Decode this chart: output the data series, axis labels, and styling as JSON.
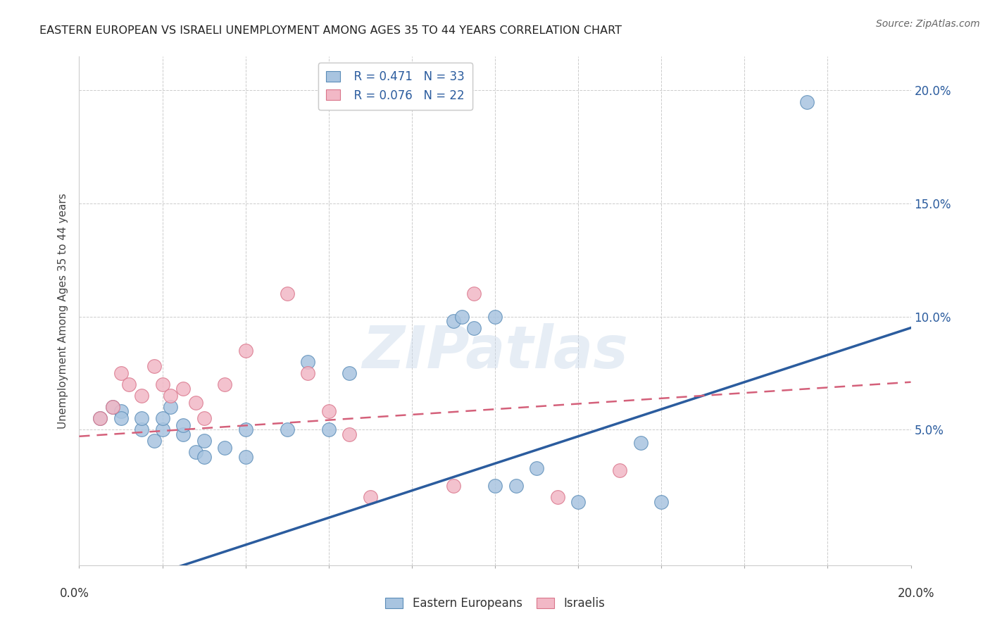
{
  "title": "EASTERN EUROPEAN VS ISRAELI UNEMPLOYMENT AMONG AGES 35 TO 44 YEARS CORRELATION CHART",
  "source": "Source: ZipAtlas.com",
  "ylabel": "Unemployment Among Ages 35 to 44 years",
  "xlim": [
    0,
    0.2
  ],
  "ylim": [
    -0.01,
    0.215
  ],
  "yticks": [
    0.05,
    0.1,
    0.15,
    0.2
  ],
  "ytick_labels": [
    "5.0%",
    "10.0%",
    "15.0%",
    "20.0%"
  ],
  "xticks": [
    0.0,
    0.02,
    0.04,
    0.06,
    0.08,
    0.1,
    0.12,
    0.14,
    0.16,
    0.18,
    0.2
  ],
  "blue_color": "#A8C4E0",
  "pink_color": "#F2B8C6",
  "blue_edge_color": "#5B8DB8",
  "pink_edge_color": "#D9748A",
  "blue_line_color": "#2B5C9E",
  "pink_line_color": "#D4607A",
  "legend_r_blue": "R = 0.471",
  "legend_n_blue": "N = 33",
  "legend_r_pink": "R = 0.076",
  "legend_n_pink": "N = 22",
  "watermark": "ZIPatlas",
  "blue_x": [
    0.005,
    0.008,
    0.01,
    0.01,
    0.015,
    0.015,
    0.018,
    0.02,
    0.02,
    0.022,
    0.025,
    0.025,
    0.028,
    0.03,
    0.03,
    0.035,
    0.04,
    0.04,
    0.05,
    0.055,
    0.06,
    0.065,
    0.09,
    0.092,
    0.095,
    0.1,
    0.1,
    0.105,
    0.11,
    0.12,
    0.135,
    0.14,
    0.175
  ],
  "blue_y": [
    0.055,
    0.06,
    0.058,
    0.055,
    0.05,
    0.055,
    0.045,
    0.05,
    0.055,
    0.06,
    0.048,
    0.052,
    0.04,
    0.038,
    0.045,
    0.042,
    0.05,
    0.038,
    0.05,
    0.08,
    0.05,
    0.075,
    0.098,
    0.1,
    0.095,
    0.1,
    0.025,
    0.025,
    0.033,
    0.018,
    0.044,
    0.018,
    0.195
  ],
  "pink_x": [
    0.005,
    0.008,
    0.01,
    0.012,
    0.015,
    0.018,
    0.02,
    0.022,
    0.025,
    0.028,
    0.03,
    0.035,
    0.04,
    0.05,
    0.055,
    0.06,
    0.065,
    0.07,
    0.09,
    0.095,
    0.115,
    0.13
  ],
  "pink_y": [
    0.055,
    0.06,
    0.075,
    0.07,
    0.065,
    0.078,
    0.07,
    0.065,
    0.068,
    0.062,
    0.055,
    0.07,
    0.085,
    0.11,
    0.075,
    0.058,
    0.048,
    0.02,
    0.025,
    0.11,
    0.02,
    0.032
  ],
  "blue_regression": [
    -0.025,
    0.6
  ],
  "pink_regression": [
    0.048,
    0.12
  ]
}
